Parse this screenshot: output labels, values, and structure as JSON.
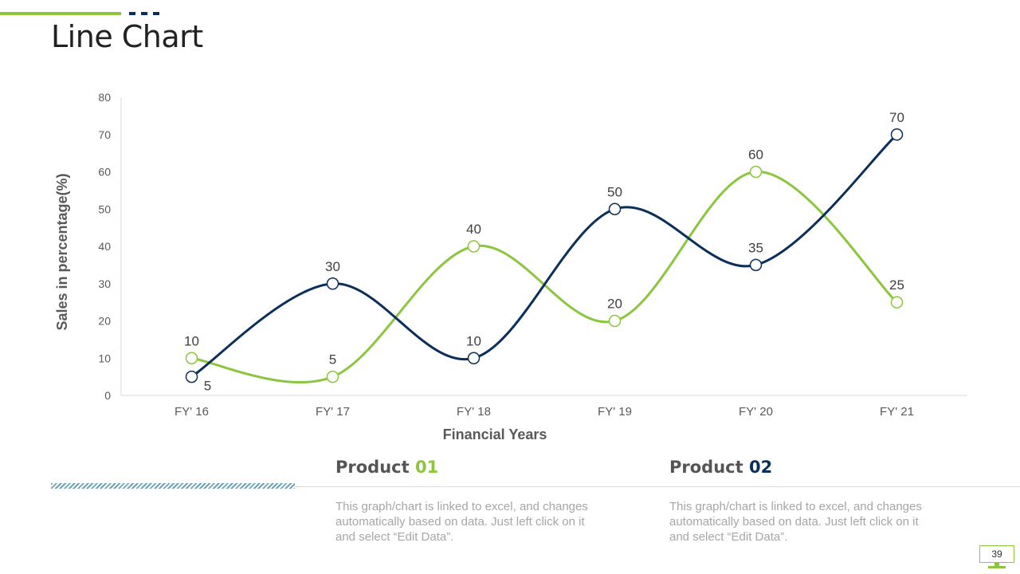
{
  "page": {
    "title": "Line Chart",
    "page_number": "39"
  },
  "colors": {
    "green": "#8CC63F",
    "navy": "#0B2F5B"
  },
  "products": [
    {
      "label": "Product",
      "number": "01",
      "description": "This graph/chart is linked to excel, and changes automatically based on data. Just left click on it and select “Edit Data”."
    },
    {
      "label": "Product",
      "number": "02",
      "description": "This graph/chart is linked to excel, and changes automatically based on data. Just left click on it and select “Edit Data”."
    }
  ],
  "chart_data": {
    "type": "line",
    "title": "",
    "xlabel": "Financial Years",
    "ylabel": "Sales in percentage(%)",
    "categories": [
      "FY' 16",
      "FY' 17",
      "FY' 18",
      "FY' 19",
      "FY' 20",
      "FY' 21"
    ],
    "ylim": [
      0,
      80
    ],
    "yticks": [
      0,
      10,
      20,
      30,
      40,
      50,
      60,
      70,
      80
    ],
    "grid": false,
    "smooth": true,
    "series": [
      {
        "name": "Product 01",
        "color": "#8CC63F",
        "values": [
          10,
          5,
          40,
          20,
          60,
          25
        ]
      },
      {
        "name": "Product 02",
        "color": "#0B2F5B",
        "values": [
          5,
          30,
          10,
          50,
          35,
          70
        ]
      }
    ]
  }
}
